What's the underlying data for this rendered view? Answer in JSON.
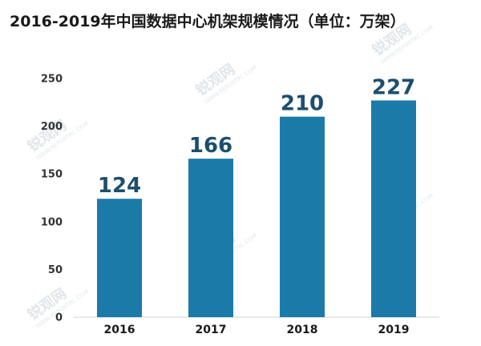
{
  "watermark": {
    "text": "锐观网",
    "subtext": "WWW.REPORTRC.COM"
  },
  "chart_data": {
    "type": "bar",
    "title": "2016-2019年中国数据中心机架规模情况（单位：万架）",
    "categories": [
      "2016",
      "2017",
      "2018",
      "2019"
    ],
    "values": [
      124,
      166,
      210,
      227
    ],
    "ylim": [
      0,
      250
    ],
    "yticks": [
      0,
      50,
      100,
      150,
      200,
      250
    ],
    "xlabel": "",
    "ylabel": "",
    "grid": false,
    "bar_color": "#1b7aa8",
    "label_color": "#1d4e6e"
  }
}
